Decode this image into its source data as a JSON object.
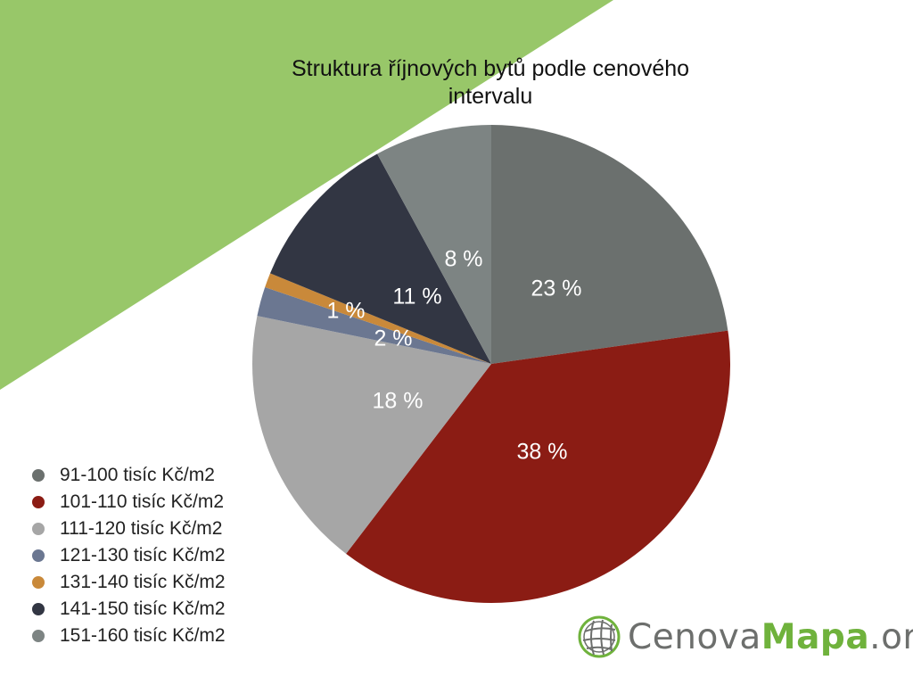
{
  "colors": {
    "background": "#ffffff",
    "accent_triangle": "#98c769"
  },
  "chart_data": {
    "type": "pie",
    "title": "Struktura říjnových bytů podle cenového intervalu",
    "title_lines": [
      "Struktura říjnových bytů podle cenového",
      "intervalu"
    ],
    "start_angle_deg": 0,
    "direction": "clockwise",
    "slices": [
      {
        "label": "91-100 tisíc Kč/m2",
        "value": 23,
        "display": "23 %",
        "color": "#6b706e"
      },
      {
        "label": "101-110 tisíc Kč/m2",
        "value": 38,
        "display": "38 %",
        "color": "#8b1c14"
      },
      {
        "label": "111-120 tisíc Kč/m2",
        "value": 18,
        "display": "18 %",
        "color": "#a6a6a6"
      },
      {
        "label": "121-130 tisíc Kč/m2",
        "value": 2,
        "display": "2 %",
        "color": "#6b7791"
      },
      {
        "label": "131-140 tisíc Kč/m2",
        "value": 1,
        "display": "1 %",
        "color": "#c9893a"
      },
      {
        "label": "141-150 tisíc Kč/m2",
        "value": 11,
        "display": "11 %",
        "color": "#323643"
      },
      {
        "label": "151-160 tisíc Kč/m2",
        "value": 8,
        "display": "8 %",
        "color": "#7d8483"
      }
    ],
    "legend_placement": "bottom-left"
  },
  "logo": {
    "part1": "Cenova",
    "part2": "Mapa",
    "part3": ".org",
    "icon": "globe-grid-icon",
    "color_main": "#6d6f6d",
    "color_accent": "#6fb23c"
  }
}
